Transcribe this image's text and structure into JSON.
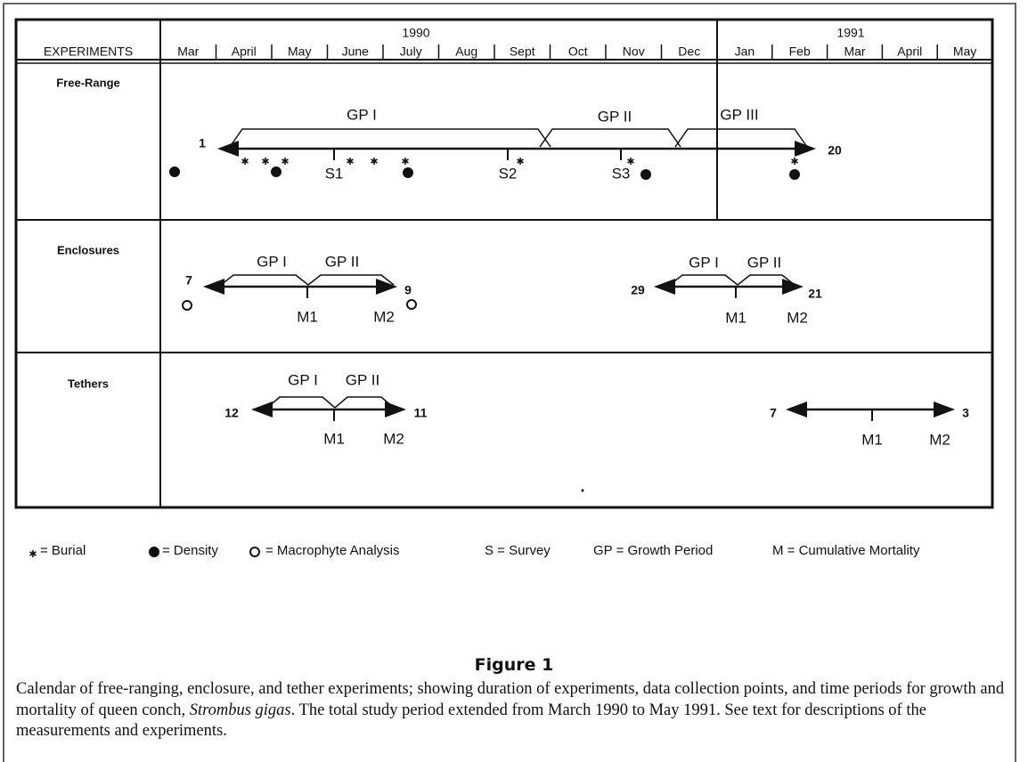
{
  "header": {
    "column_label": "EXPERIMENTS",
    "years": [
      "1990",
      "1991"
    ],
    "months_1990": [
      "Mar",
      "April",
      "May",
      "June",
      "July",
      "Aug",
      "Sept",
      "Oct",
      "Nov",
      "Dec"
    ],
    "months_1991": [
      "Jan",
      "Feb",
      "Mar",
      "April",
      "May"
    ]
  },
  "rows": [
    {
      "label": "Free-Range",
      "annotations": [
        "1",
        "20",
        "GP I",
        "GP II",
        "GP III",
        "S1",
        "S2",
        "S3"
      ]
    },
    {
      "label": "Enclosures",
      "annotations": [
        "7",
        "9",
        "GP I",
        "GP II",
        "M1",
        "M2",
        "29",
        "21",
        "GP I",
        "GP II",
        "M1",
        "M2"
      ]
    },
    {
      "label": "Tethers",
      "annotations": [
        "12",
        "11",
        "GP I",
        "GP II",
        "M1",
        "M2",
        "7",
        "3",
        "M1",
        "M2"
      ]
    }
  ],
  "legend": [
    "= Burial",
    "= Density",
    "= Macrophyte Analysis",
    "S = Survey",
    "GP = Growth Period",
    "M = Cumulative Mortality"
  ],
  "figure_label": "Figure 1",
  "caption": {
    "before": "Calendar of free-ranging, enclosure, and tether experiments; showing duration of experiments, data collection points, and time periods for growth and mortality of queen conch, ",
    "species": "Strombus gigas",
    "after": ". The total study period extended from March 1990 to May 1991. See text for descriptions of the measurements and experiments."
  }
}
